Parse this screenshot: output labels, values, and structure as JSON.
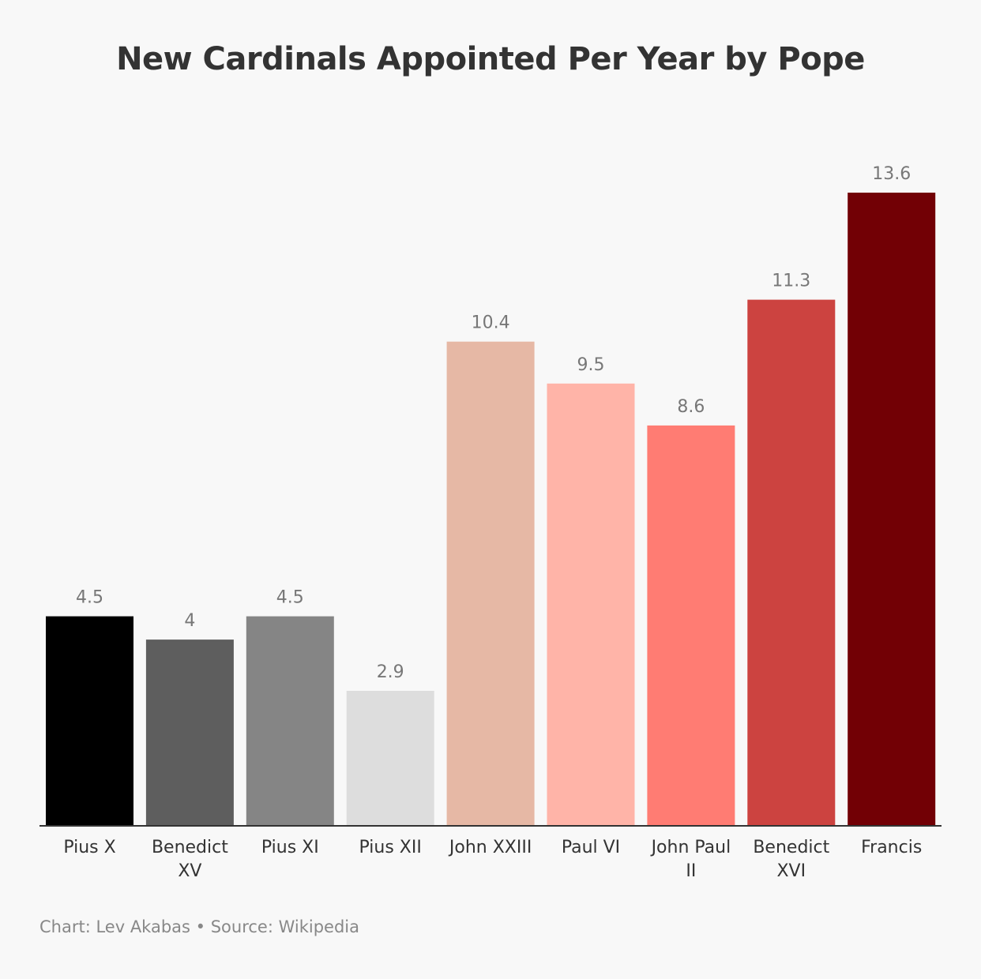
{
  "chart_data": {
    "type": "bar",
    "title": "New Cardinals Appointed Per Year by Pope",
    "categories": [
      "Pius X",
      "Benedict XV",
      "Pius XI",
      "Pius XII",
      "John XXIII",
      "Paul VI",
      "John Paul II",
      "Benedict XVI",
      "Francis"
    ],
    "category_lines": [
      [
        "Pius X"
      ],
      [
        "Benedict",
        "XV"
      ],
      [
        "Pius XI"
      ],
      [
        "Pius XII"
      ],
      [
        "John XXIII"
      ],
      [
        "Paul VI"
      ],
      [
        "John Paul",
        "II"
      ],
      [
        "Benedict",
        "XVI"
      ],
      [
        "Francis"
      ]
    ],
    "values": [
      4.5,
      4,
      4.5,
      2.9,
      10.4,
      9.5,
      8.6,
      11.3,
      13.6
    ],
    "value_labels": [
      "4.5",
      "4",
      "4.5",
      "2.9",
      "10.4",
      "9.5",
      "8.6",
      "11.3",
      "13.6"
    ],
    "colors": [
      "#000000",
      "#5e5e5e",
      "#858585",
      "#dddddd",
      "#e6b8a5",
      "#ffb4a8",
      "#ff7c73",
      "#cc4340",
      "#720005"
    ],
    "ylim": [
      0,
      13.6
    ],
    "xlabel": "",
    "ylabel": "",
    "grid": false,
    "legend": "none"
  },
  "footer": {
    "credit": "Chart: Lev Akabas • Source: Wikipedia"
  }
}
